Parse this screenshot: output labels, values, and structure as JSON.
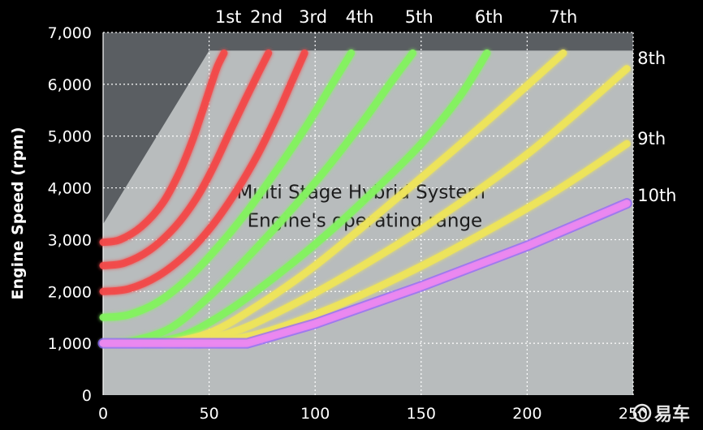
{
  "chart_data": {
    "type": "line",
    "title": "",
    "xlabel": "",
    "ylabel": "Engine Speed (rpm)",
    "xlim": [
      0,
      250
    ],
    "ylim": [
      0,
      7000
    ],
    "x_ticks": [
      "0",
      "50",
      "100",
      "150",
      "200",
      "250"
    ],
    "y_ticks": [
      "0",
      "1,000",
      "2,000",
      "3,000",
      "4,000",
      "5,000",
      "6,000",
      "7,000"
    ],
    "grid": true,
    "annotation": [
      "Multi Stage Hybrid System",
      "Engine's operating range"
    ],
    "operating_range": {
      "x": [
        0,
        0,
        50,
        250,
        250
      ],
      "y": [
        0,
        3300,
        6650,
        6650,
        0
      ],
      "color": "#b8bcbd"
    },
    "series": [
      {
        "name": "1st",
        "color": "#f24a4a",
        "x": [
          0,
          8,
          18,
          28,
          36,
          42,
          47,
          51,
          54,
          57
        ],
        "y": [
          2950,
          3000,
          3250,
          3700,
          4300,
          4900,
          5500,
          6000,
          6350,
          6600
        ]
      },
      {
        "name": "2nd",
        "color": "#f24a4a",
        "x": [
          0,
          10,
          22,
          34,
          44,
          52,
          60,
          67,
          73,
          78
        ],
        "y": [
          2500,
          2550,
          2800,
          3250,
          3800,
          4400,
          5100,
          5700,
          6200,
          6600
        ]
      },
      {
        "name": "3rd",
        "color": "#f24a4a",
        "x": [
          0,
          12,
          26,
          40,
          52,
          63,
          73,
          82,
          89,
          95
        ],
        "y": [
          2000,
          2050,
          2300,
          2750,
          3300,
          3950,
          4650,
          5400,
          6050,
          6600
        ]
      },
      {
        "name": "4th",
        "color": "#83f25f",
        "x": [
          0,
          12,
          26,
          40,
          54,
          68,
          82,
          96,
          108,
          117
        ],
        "y": [
          1500,
          1550,
          1800,
          2250,
          2850,
          3550,
          4350,
          5200,
          6000,
          6600
        ]
      },
      {
        "name": "5th",
        "color": "#83f25f",
        "x": [
          0,
          14,
          32,
          50,
          68,
          86,
          104,
          122,
          136,
          146
        ],
        "y": [
          1000,
          1050,
          1300,
          1900,
          2650,
          3450,
          4300,
          5250,
          6050,
          6600
        ]
      },
      {
        "name": "6th",
        "color": "#83f25f",
        "x": [
          20,
          38,
          58,
          80,
          104,
          128,
          150,
          168,
          181
        ],
        "y": [
          1000,
          1150,
          1600,
          2250,
          3050,
          3950,
          4850,
          5750,
          6600
        ]
      },
      {
        "name": "7th",
        "color": "#eee45a",
        "x": [
          30,
          50,
          70,
          100,
          140,
          180,
          217
        ],
        "y": [
          1000,
          1200,
          1650,
          2500,
          3850,
          5250,
          6600
        ]
      },
      {
        "name": "8th",
        "color": "#eee45a",
        "x": [
          38,
          60,
          80,
          110,
          150,
          200,
          247
        ],
        "y": [
          1000,
          1200,
          1550,
          2200,
          3200,
          4650,
          6300
        ]
      },
      {
        "name": "9th",
        "color": "#eee45a",
        "x": [
          48,
          70,
          90,
          120,
          160,
          210,
          247
        ],
        "y": [
          1000,
          1150,
          1400,
          1900,
          2700,
          3850,
          4850
        ]
      },
      {
        "name": "10th",
        "color": "#eb88f0",
        "x": [
          0,
          68,
          100,
          150,
          200,
          247
        ],
        "y": [
          1000,
          1000,
          1380,
          2100,
          2880,
          3700
        ]
      }
    ]
  },
  "watermark": "易车"
}
